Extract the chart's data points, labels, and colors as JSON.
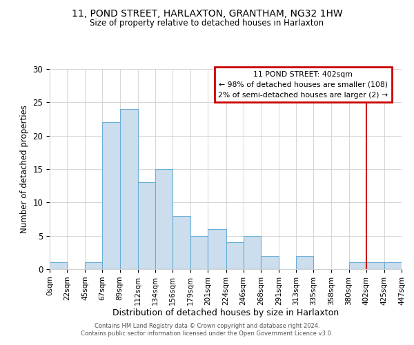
{
  "title": "11, POND STREET, HARLAXTON, GRANTHAM, NG32 1HW",
  "subtitle": "Size of property relative to detached houses in Harlaxton",
  "xlabel": "Distribution of detached houses by size in Harlaxton",
  "ylabel": "Number of detached properties",
  "bin_labels": [
    "0sqm",
    "22sqm",
    "45sqm",
    "67sqm",
    "89sqm",
    "112sqm",
    "134sqm",
    "156sqm",
    "179sqm",
    "201sqm",
    "224sqm",
    "246sqm",
    "268sqm",
    "291sqm",
    "313sqm",
    "335sqm",
    "358sqm",
    "380sqm",
    "402sqm",
    "425sqm",
    "447sqm"
  ],
  "bar_values": [
    1,
    0,
    1,
    22,
    24,
    13,
    15,
    8,
    5,
    6,
    4,
    5,
    2,
    0,
    2,
    0,
    0,
    1,
    1,
    1
  ],
  "bar_color": "#ccdded",
  "bar_edge_color": "#6aafd6",
  "ylim": [
    0,
    30
  ],
  "yticks": [
    0,
    5,
    10,
    15,
    20,
    25,
    30
  ],
  "property_line_x": 402,
  "annotation_title": "11 POND STREET: 402sqm",
  "annotation_line1": "← 98% of detached houses are smaller (108)",
  "annotation_line2": "2% of semi-detached houses are larger (2) →",
  "annotation_box_color": "#cc0000",
  "vline_color": "#cc0000",
  "footer_line1": "Contains HM Land Registry data © Crown copyright and database right 2024.",
  "footer_line2": "Contains public sector information licensed under the Open Government Licence v3.0.",
  "bin_edges": [
    0,
    22,
    45,
    67,
    89,
    112,
    134,
    156,
    179,
    201,
    224,
    246,
    268,
    291,
    313,
    335,
    358,
    380,
    402,
    425,
    447
  ]
}
